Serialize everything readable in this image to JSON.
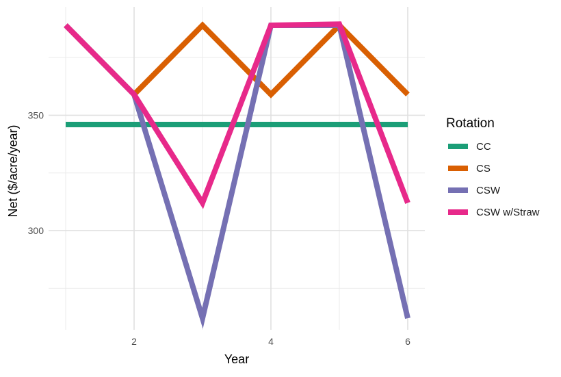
{
  "chart_data": {
    "type": "line",
    "title": "",
    "xlabel": "Year",
    "ylabel": "Net ($/acre/year)",
    "x": [
      1,
      2,
      3,
      4,
      5,
      6
    ],
    "xlim": [
      0.75,
      6.25
    ],
    "ylim": [
      257,
      397
    ],
    "x_ticks": [
      2,
      4,
      6
    ],
    "y_ticks": [
      300,
      350
    ],
    "x_minor": [
      1,
      3,
      5
    ],
    "y_minor": [
      275,
      325,
      375
    ],
    "grid": true,
    "legend": {
      "title": "Rotation",
      "position": "right"
    },
    "series": [
      {
        "name": "CC",
        "color": "#1b9e77",
        "values": [
          346,
          346,
          346,
          346,
          346,
          346
        ]
      },
      {
        "name": "CS",
        "color": "#d95f02",
        "values": [
          389,
          359,
          389,
          359,
          389,
          359
        ]
      },
      {
        "name": "CSW",
        "color": "#7570b3",
        "values": [
          389,
          359,
          262,
          389,
          389,
          262
        ]
      },
      {
        "name": "CSW w/Straw",
        "color": "#e7298a",
        "values": [
          389,
          359,
          312,
          389,
          389.5,
          312
        ]
      }
    ]
  }
}
